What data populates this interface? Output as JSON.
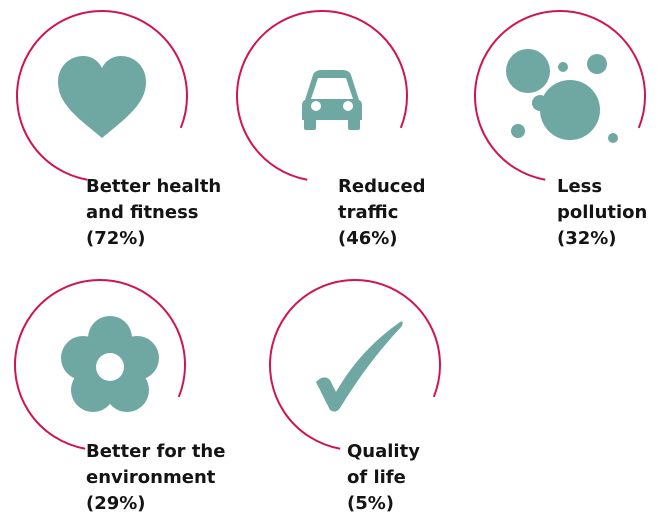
{
  "items": [
    {
      "lines": [
        "Better health",
        "and fitness",
        "(72%)"
      ]
    },
    {
      "lines": [
        "Reduced",
        "traffic",
        "(46%)"
      ]
    },
    {
      "lines": [
        "Less",
        "pollution",
        "(32%)"
      ]
    },
    {
      "lines": [
        "Better for the",
        "environment",
        "(29%)"
      ]
    },
    {
      "lines": [
        "Quality",
        "of life",
        "(5%)"
      ]
    }
  ]
}
